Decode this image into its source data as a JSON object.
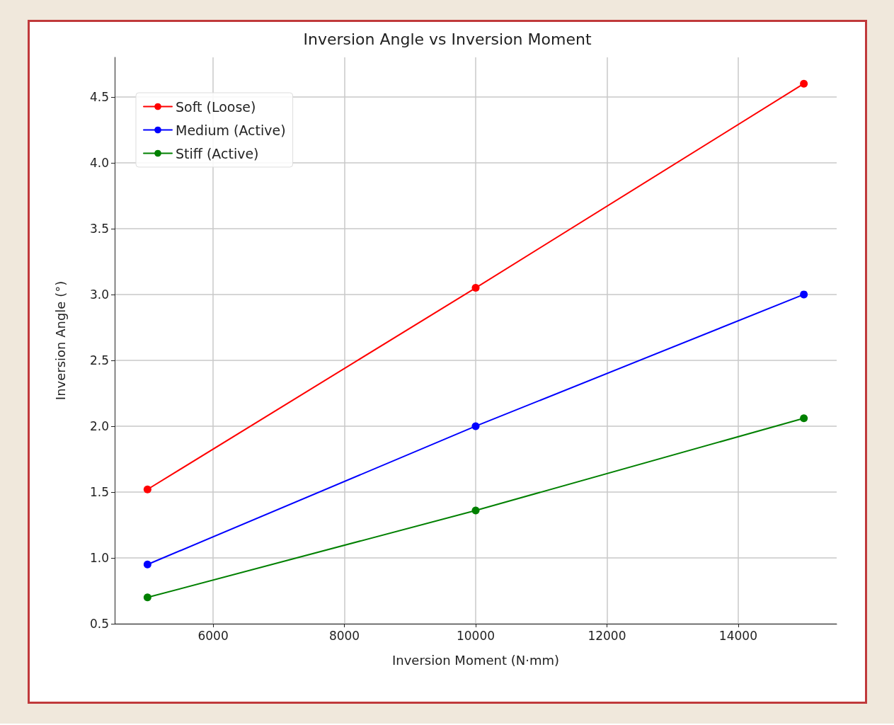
{
  "chart_data": {
    "type": "line",
    "title": "Inversion Angle vs Inversion Moment",
    "xlabel": "Inversion Moment (N·mm)",
    "ylabel": "Inversion Angle (°)",
    "x": [
      5000,
      10000,
      15000
    ],
    "series": [
      {
        "name": "Soft (Loose)",
        "color": "#ff0000",
        "values": [
          1.52,
          3.05,
          4.6
        ]
      },
      {
        "name": "Medium (Active)",
        "color": "#0000ff",
        "values": [
          0.95,
          2.0,
          3.0
        ]
      },
      {
        "name": "Stiff (Active)",
        "color": "#008000",
        "values": [
          0.7,
          1.36,
          2.06
        ]
      }
    ],
    "xlim": [
      4500,
      15500
    ],
    "xticks": [
      6000,
      8000,
      10000,
      12000,
      14000
    ],
    "ylim": [
      0.5,
      4.8
    ],
    "yticks": [
      0.5,
      {
        "value": 1,
        "label": "1.0"
      },
      1.5,
      {
        "value": 2,
        "label": "2.0"
      },
      2.5,
      {
        "value": 3,
        "label": "3.0"
      },
      3.5,
      {
        "value": 4,
        "label": "4.0"
      },
      4.5
    ],
    "grid": true,
    "legend": "top left",
    "marker": "circle",
    "line_style": "solid"
  }
}
